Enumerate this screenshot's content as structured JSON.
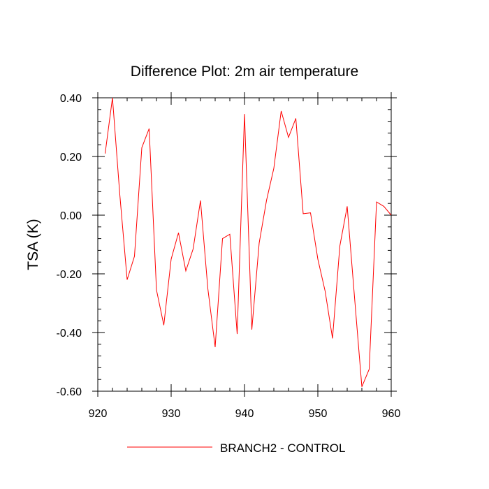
{
  "chart_data": {
    "type": "line",
    "title": "Difference Plot: 2m air temperature",
    "xlabel": "",
    "ylabel": "TSA  (K)",
    "xlim": [
      920,
      960
    ],
    "ylim": [
      -0.6,
      0.4
    ],
    "x_ticks": [
      920,
      930,
      940,
      950,
      960
    ],
    "x_tick_labels": [
      "920",
      "930",
      "940",
      "950",
      "960"
    ],
    "y_ticks": [
      0.4,
      0.2,
      0.0,
      -0.2,
      -0.4,
      -0.6
    ],
    "y_tick_labels": [
      "0.40",
      "0.20",
      "0.00",
      "-0.20",
      "-0.40",
      "-0.60"
    ],
    "grid": false,
    "legend_position": "bottom-center",
    "series": [
      {
        "name": "BRANCH2 - CONTROL",
        "color": "#ff0000",
        "x": [
          921,
          922,
          923,
          924,
          925,
          926,
          927,
          928,
          929,
          930,
          931,
          932,
          933,
          934,
          935,
          936,
          937,
          938,
          939,
          940,
          941,
          942,
          943,
          944,
          945,
          946,
          947,
          948,
          949,
          950,
          951,
          952,
          953,
          954,
          955,
          956,
          957,
          958,
          959,
          960
        ],
        "y": [
          0.21,
          0.4,
          0.07,
          -0.22,
          -0.14,
          0.23,
          0.295,
          -0.255,
          -0.375,
          -0.15,
          -0.06,
          -0.19,
          -0.115,
          0.05,
          -0.25,
          -0.45,
          -0.08,
          -0.065,
          -0.405,
          0.345,
          -0.39,
          -0.095,
          0.05,
          0.16,
          0.355,
          0.265,
          0.33,
          0.005,
          0.008,
          -0.15,
          -0.26,
          -0.42,
          -0.105,
          0.03,
          -0.28,
          -0.585,
          -0.525,
          0.045,
          0.03,
          0.0
        ]
      }
    ]
  }
}
